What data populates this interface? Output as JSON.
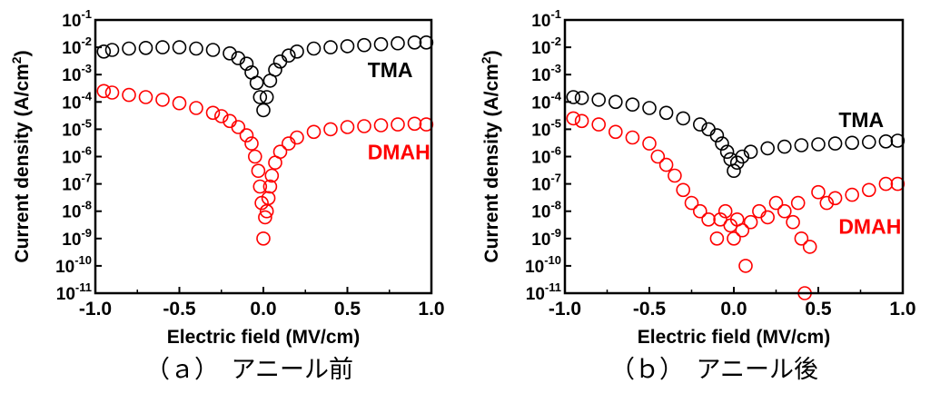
{
  "figure": {
    "caption_a": "（ａ）　アニール前",
    "caption_b": "（ｂ）　アニール後"
  },
  "colors": {
    "tma": "#000000",
    "dmah": "#ff0000"
  },
  "chart_data": [
    {
      "type": "scatter",
      "title": "",
      "xlabel": "Electric field (MV/cm)",
      "ylabel": "Current density (A/cm²)",
      "xlim": [
        -1.0,
        1.0
      ],
      "ylim": [
        1e-11,
        0.1
      ],
      "yscale": "log",
      "xticks": [
        "-1.0",
        "-0.5",
        "0.0",
        "0.5",
        "1.0"
      ],
      "yticks": [
        "10",
        "10",
        "10",
        "10",
        "10",
        "10",
        "10",
        "10",
        "10",
        "10",
        "10"
      ],
      "ytick_exponents": [
        "-11",
        "-10",
        "-9",
        "-8",
        "-7",
        "-6",
        "-5",
        "-4",
        "-3",
        "-2",
        "-1"
      ],
      "grid": false,
      "series": [
        {
          "name": "TMA",
          "color": "#000000",
          "points": [
            [
              -0.95,
              0.007
            ],
            [
              -0.9,
              0.008
            ],
            [
              -0.8,
              0.009
            ],
            [
              -0.7,
              0.0095
            ],
            [
              -0.6,
              0.01
            ],
            [
              -0.5,
              0.01
            ],
            [
              -0.4,
              0.009
            ],
            [
              -0.3,
              0.008
            ],
            [
              -0.2,
              0.006
            ],
            [
              -0.15,
              0.004
            ],
            [
              -0.1,
              0.0025
            ],
            [
              -0.07,
              0.0012
            ],
            [
              -0.04,
              0.0005
            ],
            [
              -0.02,
              0.00015
            ],
            [
              0.0,
              5e-05
            ],
            [
              0.02,
              0.00015
            ],
            [
              0.04,
              0.0006
            ],
            [
              0.07,
              0.0015
            ],
            [
              0.1,
              0.003
            ],
            [
              0.15,
              0.005
            ],
            [
              0.2,
              0.007
            ],
            [
              0.3,
              0.009
            ],
            [
              0.4,
              0.01
            ],
            [
              0.5,
              0.011
            ],
            [
              0.6,
              0.012
            ],
            [
              0.7,
              0.013
            ],
            [
              0.8,
              0.014
            ],
            [
              0.9,
              0.015
            ],
            [
              0.97,
              0.015
            ]
          ]
        },
        {
          "name": "DMAH",
          "color": "#ff0000",
          "points": [
            [
              -0.95,
              0.00025
            ],
            [
              -0.9,
              0.00022
            ],
            [
              -0.8,
              0.00018
            ],
            [
              -0.7,
              0.00015
            ],
            [
              -0.6,
              0.00012
            ],
            [
              -0.5,
              9e-05
            ],
            [
              -0.4,
              6e-05
            ],
            [
              -0.3,
              4e-05
            ],
            [
              -0.25,
              3e-05
            ],
            [
              -0.2,
              2e-05
            ],
            [
              -0.15,
              1.2e-05
            ],
            [
              -0.1,
              6e-06
            ],
            [
              -0.07,
              3e-06
            ],
            [
              -0.05,
              1e-06
            ],
            [
              -0.03,
              3e-07
            ],
            [
              -0.02,
              8e-08
            ],
            [
              -0.01,
              2e-08
            ],
            [
              0.0,
              1e-09
            ],
            [
              0.01,
              6e-09
            ],
            [
              0.02,
              1e-08
            ],
            [
              0.03,
              3e-08
            ],
            [
              0.04,
              8e-08
            ],
            [
              0.05,
              2e-07
            ],
            [
              0.07,
              6e-07
            ],
            [
              0.1,
              1.5e-06
            ],
            [
              0.15,
              3e-06
            ],
            [
              0.2,
              5e-06
            ],
            [
              0.3,
              8e-06
            ],
            [
              0.4,
              1e-05
            ],
            [
              0.5,
              1.2e-05
            ],
            [
              0.6,
              1.3e-05
            ],
            [
              0.7,
              1.4e-05
            ],
            [
              0.8,
              1.5e-05
            ],
            [
              0.9,
              1.6e-05
            ],
            [
              0.97,
              1.5e-05
            ]
          ]
        }
      ],
      "annotations": [
        {
          "text": "TMA",
          "color": "#000000",
          "x": 0.62,
          "y": 0.0008
        },
        {
          "text": "DMAH",
          "color": "#ff0000",
          "x": 0.62,
          "y": 8e-07
        }
      ]
    },
    {
      "type": "scatter",
      "title": "",
      "xlabel": "Electric field (MV/cm)",
      "ylabel": "Current density (A/cm²)",
      "xlim": [
        -1.0,
        1.0
      ],
      "ylim": [
        1e-11,
        0.1
      ],
      "yscale": "log",
      "xticks": [
        "-1.0",
        "-0.5",
        "0.0",
        "0.5",
        "1.0"
      ],
      "yticks": [
        "10",
        "10",
        "10",
        "10",
        "10",
        "10",
        "10",
        "10",
        "10",
        "10",
        "10"
      ],
      "ytick_exponents": [
        "-11",
        "-10",
        "-9",
        "-8",
        "-7",
        "-6",
        "-5",
        "-4",
        "-3",
        "-2",
        "-1"
      ],
      "grid": false,
      "series": [
        {
          "name": "TMA",
          "color": "#000000",
          "points": [
            [
              -0.95,
              0.00015
            ],
            [
              -0.9,
              0.00014
            ],
            [
              -0.8,
              0.00012
            ],
            [
              -0.7,
              0.0001
            ],
            [
              -0.6,
              8e-05
            ],
            [
              -0.5,
              6e-05
            ],
            [
              -0.4,
              4e-05
            ],
            [
              -0.3,
              2.5e-05
            ],
            [
              -0.2,
              1.5e-05
            ],
            [
              -0.15,
              1e-05
            ],
            [
              -0.1,
              6e-06
            ],
            [
              -0.07,
              3e-06
            ],
            [
              -0.04,
              1.5e-06
            ],
            [
              -0.02,
              8e-07
            ],
            [
              0.0,
              3e-07
            ],
            [
              0.02,
              6e-07
            ],
            [
              0.05,
              1e-06
            ],
            [
              0.1,
              1.5e-06
            ],
            [
              0.2,
              2e-06
            ],
            [
              0.3,
              2.3e-06
            ],
            [
              0.4,
              2.6e-06
            ],
            [
              0.5,
              2.8e-06
            ],
            [
              0.6,
              3e-06
            ],
            [
              0.7,
              3.2e-06
            ],
            [
              0.8,
              3.4e-06
            ],
            [
              0.9,
              3.6e-06
            ],
            [
              0.97,
              3.8e-06
            ]
          ]
        },
        {
          "name": "DMAH",
          "color": "#ff0000",
          "points": [
            [
              -0.95,
              2.5e-05
            ],
            [
              -0.9,
              2e-05
            ],
            [
              -0.8,
              1.5e-05
            ],
            [
              -0.7,
              8e-06
            ],
            [
              -0.6,
              5e-06
            ],
            [
              -0.5,
              3e-06
            ],
            [
              -0.45,
              1e-06
            ],
            [
              -0.4,
              5e-07
            ],
            [
              -0.35,
              2e-07
            ],
            [
              -0.3,
              6e-08
            ],
            [
              -0.25,
              2e-08
            ],
            [
              -0.2,
              1e-08
            ],
            [
              -0.15,
              5e-09
            ],
            [
              -0.1,
              1e-09
            ],
            [
              -0.08,
              5e-09
            ],
            [
              -0.05,
              1e-08
            ],
            [
              -0.02,
              3e-09
            ],
            [
              0.0,
              1e-09
            ],
            [
              0.02,
              5e-09
            ],
            [
              0.05,
              2e-09
            ],
            [
              0.07,
              1e-10
            ],
            [
              0.1,
              4e-09
            ],
            [
              0.15,
              1e-08
            ],
            [
              0.2,
              6e-09
            ],
            [
              0.25,
              2e-08
            ],
            [
              0.3,
              1e-08
            ],
            [
              0.35,
              4e-09
            ],
            [
              0.38,
              2e-08
            ],
            [
              0.4,
              1e-09
            ],
            [
              0.42,
              1e-11
            ],
            [
              0.45,
              5e-10
            ],
            [
              0.5,
              5e-08
            ],
            [
              0.55,
              2e-08
            ],
            [
              0.6,
              3e-08
            ],
            [
              0.7,
              4e-08
            ],
            [
              0.8,
              6e-08
            ],
            [
              0.9,
              1e-07
            ],
            [
              0.97,
              1e-07
            ]
          ]
        }
      ],
      "annotations": [
        {
          "text": "TMA",
          "color": "#000000",
          "x": 0.62,
          "y": 1.2e-05
        },
        {
          "text": "DMAH",
          "color": "#ff0000",
          "x": 0.62,
          "y": 1.5e-09
        }
      ]
    }
  ]
}
